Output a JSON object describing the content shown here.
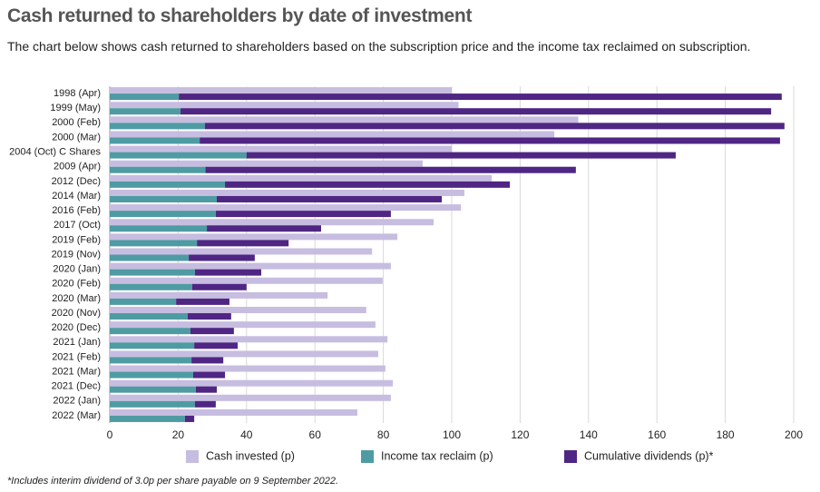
{
  "chart_data": {
    "type": "bar",
    "orientation": "horizontal",
    "title": "Cash returned to shareholders by date of investment",
    "subtitle": "The chart below shows cash returned to shareholders based on the subscription price and the income tax reclaimed on subscription.",
    "footnote": "*Includes interim dividend of 3.0p per share payable on 9 September 2022.",
    "categories": [
      "1998 (Apr)",
      "1999 (May)",
      "2000 (Feb)",
      "2000 (Mar)",
      "2004 (Oct) C Shares",
      "2009 (Apr)",
      "2012 (Dec)",
      "2014 (Mar)",
      "2016 (Feb)",
      "2017 (Oct)",
      "2019 (Feb)",
      "2019 (Nov)",
      "2020 (Jan)",
      "2020 (Feb)",
      "2020 (Mar)",
      "2020 (Nov)",
      "2020 (Dec)",
      "2021 (Jan)",
      "2021 (Feb)",
      "2021 (Mar)",
      "2021 (Dec)",
      "2022 (Jan)",
      "2022 (Mar)"
    ],
    "series": [
      {
        "name": "Cash invested (p)",
        "color": "#c7bde0",
        "values": [
          100,
          102,
          137,
          130,
          100,
          91.5,
          111.7,
          103.7,
          102.7,
          94.7,
          84.1,
          76.7,
          82.2,
          79.8,
          63.7,
          75,
          77.7,
          81.2,
          78.5,
          80.6,
          82.8,
          82.2,
          72.4
        ]
      },
      {
        "name": "Income tax reclaim (p)",
        "color": "#4f9ba3",
        "values": [
          20.2,
          20.7,
          27.8,
          26.3,
          40,
          28,
          33.7,
          31.3,
          31,
          28.4,
          25.5,
          23.1,
          24.9,
          24.1,
          19.4,
          22.8,
          23.6,
          24.7,
          23.9,
          24.4,
          25.2,
          24.9,
          22
        ]
      },
      {
        "name": "Cumulative dividends (p)*",
        "color": "#4f2683",
        "values": [
          176.3,
          172.7,
          169.5,
          169.7,
          125.5,
          108.3,
          83.3,
          65.8,
          51.2,
          33.4,
          26.8,
          19.3,
          19.4,
          15.9,
          15.6,
          12.7,
          12.7,
          12.7,
          9.3,
          9.3,
          6.1,
          6.1,
          2.7
        ]
      }
    ],
    "xlim": [
      0,
      200
    ],
    "xticks": [
      0,
      20,
      40,
      60,
      80,
      100,
      120,
      140,
      160,
      180,
      200
    ],
    "grid": true
  }
}
